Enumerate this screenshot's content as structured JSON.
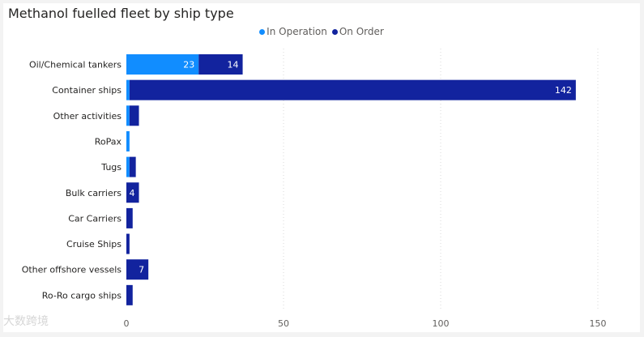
{
  "chart_data": {
    "type": "bar",
    "orientation": "horizontal",
    "stacked": true,
    "title": "Methanol fuelled fleet by ship type",
    "categories": [
      "Oil/Chemical tankers",
      "Container ships",
      "Other activities",
      "RoPax",
      "Tugs",
      "Bulk carriers",
      "Car Carriers",
      "Cruise Ships",
      "Other offshore vessels",
      "Ro-Ro cargo ships"
    ],
    "series": [
      {
        "name": "In Operation",
        "color": "#118dff",
        "values": [
          23,
          1,
          1,
          1,
          1,
          0,
          0,
          0,
          0,
          0
        ]
      },
      {
        "name": "On Order",
        "color": "#12239e",
        "values": [
          14,
          142,
          3,
          0,
          2,
          4,
          2,
          1,
          7,
          2
        ]
      }
    ],
    "data_labels": {
      "0": {
        "In Operation": "23",
        "On Order": "14"
      },
      "1": {
        "On Order": "142"
      },
      "5": {
        "On Order": "4"
      },
      "8": {
        "On Order": "7"
      }
    },
    "xlim": [
      0,
      153
    ],
    "xticks": [
      "0",
      "50",
      "100",
      "150"
    ],
    "grid": true,
    "legend": "top-center"
  },
  "watermark": "大数跨境"
}
